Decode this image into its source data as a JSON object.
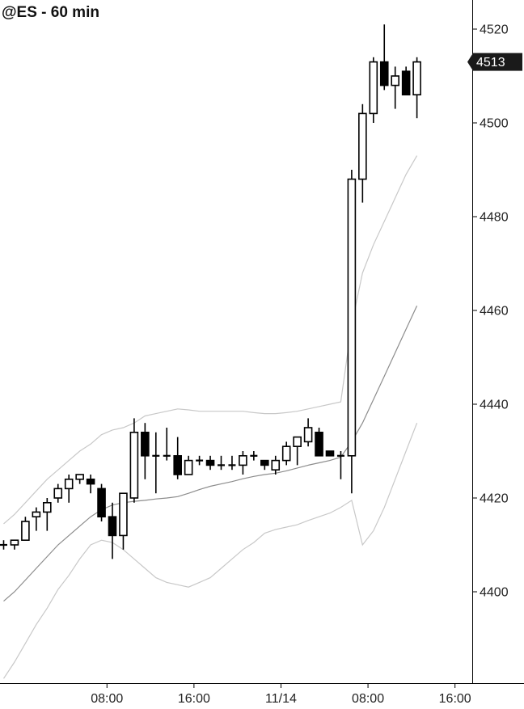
{
  "chart_data": {
    "type": "candlestick",
    "title": "@ES - 60 min",
    "ylim": [
      4383,
      4526
    ],
    "yticks": [
      4400,
      4420,
      4440,
      4460,
      4480,
      4500,
      4520
    ],
    "xticks": [
      {
        "bar": 9.5,
        "label": "08:00"
      },
      {
        "bar": 17.5,
        "label": "16:00"
      },
      {
        "bar": 25.5,
        "label": "11/14"
      },
      {
        "bar": 33.5,
        "label": "08:00"
      },
      {
        "bar": 41.5,
        "label": "16:00"
      }
    ],
    "last_price": "4513",
    "candles": [
      {
        "o": 4410,
        "h": 4411,
        "l": 4409,
        "c": 4410
      },
      {
        "o": 4410,
        "h": 4411,
        "l": 4409,
        "c": 4411
      },
      {
        "o": 4411,
        "h": 4416,
        "l": 4411,
        "c": 4415
      },
      {
        "o": 4416,
        "h": 4418,
        "l": 4413,
        "c": 4417
      },
      {
        "o": 4417,
        "h": 4420,
        "l": 4413,
        "c": 4419
      },
      {
        "o": 4420,
        "h": 4423,
        "l": 4419,
        "c": 4422
      },
      {
        "o": 4422,
        "h": 4425,
        "l": 4419,
        "c": 4424
      },
      {
        "o": 4424,
        "h": 4425,
        "l": 4423,
        "c": 4425
      },
      {
        "o": 4424,
        "h": 4425,
        "l": 4421,
        "c": 4423
      },
      {
        "o": 4422,
        "h": 4423,
        "l": 4415,
        "c": 4416
      },
      {
        "o": 4416,
        "h": 4419,
        "l": 4407,
        "c": 4412
      },
      {
        "o": 4412,
        "h": 4421,
        "l": 4409,
        "c": 4421
      },
      {
        "o": 4420,
        "h": 4437,
        "l": 4419,
        "c": 4434
      },
      {
        "o": 4434,
        "h": 4436,
        "l": 4424,
        "c": 4429
      },
      {
        "o": 4429,
        "h": 4434,
        "l": 4421,
        "c": 4429
      },
      {
        "o": 4429,
        "h": 4435,
        "l": 4428,
        "c": 4429
      },
      {
        "o": 4429,
        "h": 4433,
        "l": 4424,
        "c": 4425
      },
      {
        "o": 4425,
        "h": 4429,
        "l": 4425,
        "c": 4428
      },
      {
        "o": 4428,
        "h": 4429,
        "l": 4427,
        "c": 4428
      },
      {
        "o": 4428,
        "h": 4429,
        "l": 4426,
        "c": 4427
      },
      {
        "o": 4427,
        "h": 4429,
        "l": 4426,
        "c": 4427
      },
      {
        "o": 4427,
        "h": 4429,
        "l": 4426,
        "c": 4427
      },
      {
        "o": 4427,
        "h": 4430,
        "l": 4425,
        "c": 4429
      },
      {
        "o": 4429,
        "h": 4430,
        "l": 4428,
        "c": 4429
      },
      {
        "o": 4428,
        "h": 4428,
        "l": 4426,
        "c": 4427
      },
      {
        "o": 4426,
        "h": 4429,
        "l": 4425,
        "c": 4428
      },
      {
        "o": 4428,
        "h": 4432,
        "l": 4427,
        "c": 4431
      },
      {
        "o": 4431,
        "h": 4433,
        "l": 4427,
        "c": 4433
      },
      {
        "o": 4432,
        "h": 4437,
        "l": 4431,
        "c": 4435
      },
      {
        "o": 4434,
        "h": 4435,
        "l": 4429,
        "c": 4429
      },
      {
        "o": 4430,
        "h": 4430,
        "l": 4429,
        "c": 4429
      },
      {
        "o": 4429,
        "h": 4430,
        "l": 4424,
        "c": 4429
      },
      {
        "o": 4429,
        "h": 4490,
        "l": 4421,
        "c": 4488
      },
      {
        "o": 4488,
        "h": 4504,
        "l": 4483,
        "c": 4502
      },
      {
        "o": 4502,
        "h": 4514,
        "l": 4500,
        "c": 4513
      },
      {
        "o": 4513,
        "h": 4521,
        "l": 4507,
        "c": 4508
      },
      {
        "o": 4508,
        "h": 4512,
        "l": 4503,
        "c": 4510
      },
      {
        "o": 4511,
        "h": 4512,
        "l": 4506,
        "c": 4506
      },
      {
        "o": 4506,
        "h": 4514,
        "l": 4501,
        "c": 4513
      }
    ],
    "series": [
      {
        "name": "",
        "role": "band_upper",
        "start": 0,
        "values": [
          4414.5,
          4416.5,
          4419,
          4421.5,
          4424,
          4426,
          4428,
          4430,
          4431.5,
          4433.5,
          4434.5,
          4435,
          4436,
          4437.5,
          4438,
          4438.5,
          4439,
          4438.8,
          4438.5,
          4438.5,
          4438.5,
          4438.5,
          4438.5,
          4438.2,
          4438,
          4438,
          4438.2,
          4438.5,
          4439,
          4439.5,
          4440,
          4440.5,
          4457,
          4468,
          4474,
          4479,
          4484,
          4489,
          4493
        ]
      },
      {
        "name": "",
        "role": "middle",
        "start": 0,
        "values": [
          4398,
          4400,
          4402.5,
          4405,
          4407.5,
          4410,
          4412,
          4414,
          4416,
          4417.5,
          4418.5,
          4419,
          4419.3,
          4419.5,
          4419.8,
          4420,
          4420.3,
          4421,
          4421.8,
          4422.5,
          4423,
          4423.5,
          4424.1,
          4424.6,
          4425,
          4425.3,
          4425.8,
          4426.4,
          4427,
          4427.5,
          4428,
          4428.7,
          4432,
          4436,
          4441,
          4446,
          4451,
          4456,
          4461
        ]
      },
      {
        "name": "",
        "role": "band_lower",
        "start": 0,
        "values": [
          4381.5,
          4385,
          4389,
          4393,
          4396.5,
          4400.5,
          4403.5,
          4407,
          4410,
          4411,
          4410.5,
          4409,
          4407,
          4405,
          4403,
          4402,
          4401.5,
          4401,
          4402,
          4403,
          4405,
          4407,
          4409,
          4410.5,
          4412.5,
          4413.3,
          4413.8,
          4414.3,
          4415.2,
          4416,
          4416.8,
          4418,
          4419.5,
          4410,
          4413,
          4418,
          4424,
          4430,
          4436
        ]
      }
    ],
    "colors": {
      "band": "#c8c8c8",
      "middle": "#8c8c8c",
      "candle": "#000000",
      "label_bg": "#1a1a1a"
    }
  }
}
